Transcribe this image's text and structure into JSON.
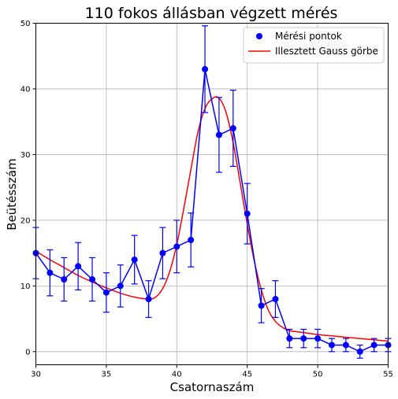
{
  "colors": {
    "measured": "#0000ff",
    "fit": "#ff0000",
    "grid": "#b0b0b0",
    "background": "#ffffff"
  },
  "chart_data": {
    "type": "scatter",
    "title": "110 fokos állásban végzett mérés",
    "xlabel": "Csatornaszám",
    "ylabel": "Beütésszám",
    "xlim": [
      30,
      55
    ],
    "ylim": [
      -2,
      50
    ],
    "xticks": [
      30,
      35,
      40,
      45,
      50,
      55
    ],
    "yticks": [
      0,
      10,
      20,
      30,
      40,
      50
    ],
    "grid": true,
    "legend_position": "top-right",
    "series": [
      {
        "name": "Mérési pontok",
        "kind": "errorbar",
        "x": [
          30,
          31,
          32,
          33,
          34,
          35,
          36,
          37,
          38,
          39,
          40,
          41,
          42,
          43,
          44,
          45,
          46,
          47,
          48,
          49,
          50,
          51,
          52,
          53,
          54,
          55
        ],
        "y": [
          15,
          12,
          11,
          13,
          11,
          9,
          10,
          14,
          8,
          15,
          16,
          17,
          43,
          33,
          34,
          21,
          7,
          8,
          2,
          2,
          2,
          1,
          1,
          0,
          1,
          1
        ],
        "yerr": [
          3.9,
          3.5,
          3.3,
          3.6,
          3.3,
          3.0,
          3.2,
          3.7,
          2.8,
          3.9,
          4.0,
          4.1,
          6.6,
          5.7,
          5.8,
          4.6,
          2.6,
          2.8,
          1.4,
          1.4,
          1.4,
          1.0,
          1.0,
          1.0,
          1.0,
          1.0
        ]
      },
      {
        "name": "Illesztett Gauss görbe",
        "kind": "line",
        "x": [
          30,
          31,
          32,
          33,
          34,
          35,
          36,
          37,
          38,
          38.5,
          39,
          39.5,
          40,
          40.5,
          41,
          41.5,
          42,
          42.5,
          43,
          43.5,
          44,
          44.5,
          45,
          45.5,
          46,
          46.5,
          47,
          47.5,
          48,
          49,
          50,
          51,
          52,
          53,
          54,
          55
        ],
        "y": [
          15.3,
          14.0,
          12.8,
          11.6,
          10.6,
          9.7,
          8.9,
          8.3,
          8.0,
          8.3,
          9.6,
          12.2,
          16.3,
          21.8,
          27.7,
          33.4,
          37.0,
          38.5,
          38.6,
          36.4,
          31.8,
          25.7,
          19.4,
          13.8,
          9.4,
          6.3,
          4.6,
          3.7,
          3.2,
          2.9,
          2.6,
          2.4,
          2.2,
          2.0,
          1.8,
          1.6
        ]
      }
    ]
  }
}
